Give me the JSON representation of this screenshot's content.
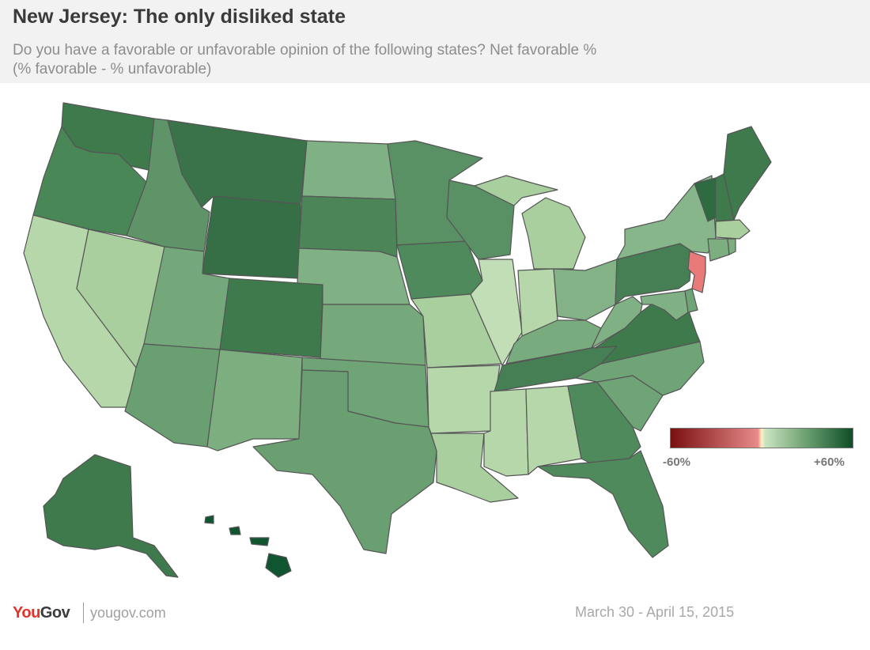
{
  "header": {
    "title": "New Jersey: The only disliked state",
    "subtitle_line1": "Do you have a favorable or unfavorable opinion of the following states? Net favorable %",
    "subtitle_line2": "(% favorable - % unfavorable)"
  },
  "legend": {
    "min_label": "-60%",
    "max_label": "+60%",
    "min_value": -60,
    "max_value": 60,
    "colors": [
      "#7a1010",
      "#e88a8a",
      "#fff0c0",
      "#c9e3c0",
      "#6a9e6e",
      "#0d4d28"
    ]
  },
  "map_data": {
    "unfavorable_color": "#e87a7a",
    "state_colors": {
      "WA": "#3f7a4d",
      "OR": "#4a8757",
      "CA": "#b5d7aa",
      "NV": "#a9cf9e",
      "ID": "#5e9468",
      "MT": "#3a724a",
      "WY": "#366e45",
      "UT": "#74a87a",
      "AZ": "#6a9f72",
      "NM": "#7cae80",
      "CO": "#3f7a4d",
      "ND": "#80b184",
      "SD": "#4c8658",
      "NE": "#80b184",
      "KS": "#75a97b",
      "OK": "#6fa476",
      "TX": "#6a9f72",
      "MN": "#5a9164",
      "IA": "#4e8a5b",
      "MO": "#a9cf9e",
      "AR": "#b5d7aa",
      "LA": "#a9cf9e",
      "WI": "#5a9164",
      "IL": "#c2deb6",
      "MI": "#a9cf9e",
      "IN": "#b5d7aa",
      "OH": "#82b286",
      "KY": "#78ab7d",
      "TN": "#467f53",
      "MS": "#b5d7aa",
      "AL": "#b5d7aa",
      "GA": "#4f8a5c",
      "FL": "#4f8a5c",
      "SC": "#6fa476",
      "NC": "#6fa476",
      "VA": "#3f7a4d",
      "WV": "#80b184",
      "PA": "#467f53",
      "NY": "#86b689",
      "VT": "#2e6b40",
      "NH": "#3f7a4d",
      "ME": "#3f7a4d",
      "MA": "#a9cf9e",
      "CT": "#7cae80",
      "RI": "#7cae80",
      "NJ": "#e87a7a",
      "DE": "#6fa476",
      "MD": "#80b184",
      "AK": "#3f7a4d",
      "HI": "#0f5530"
    }
  },
  "footer": {
    "logo_you": "You",
    "logo_gov": "Gov",
    "url": "yougov.com",
    "date": "March 30 - April 15, 2015"
  }
}
